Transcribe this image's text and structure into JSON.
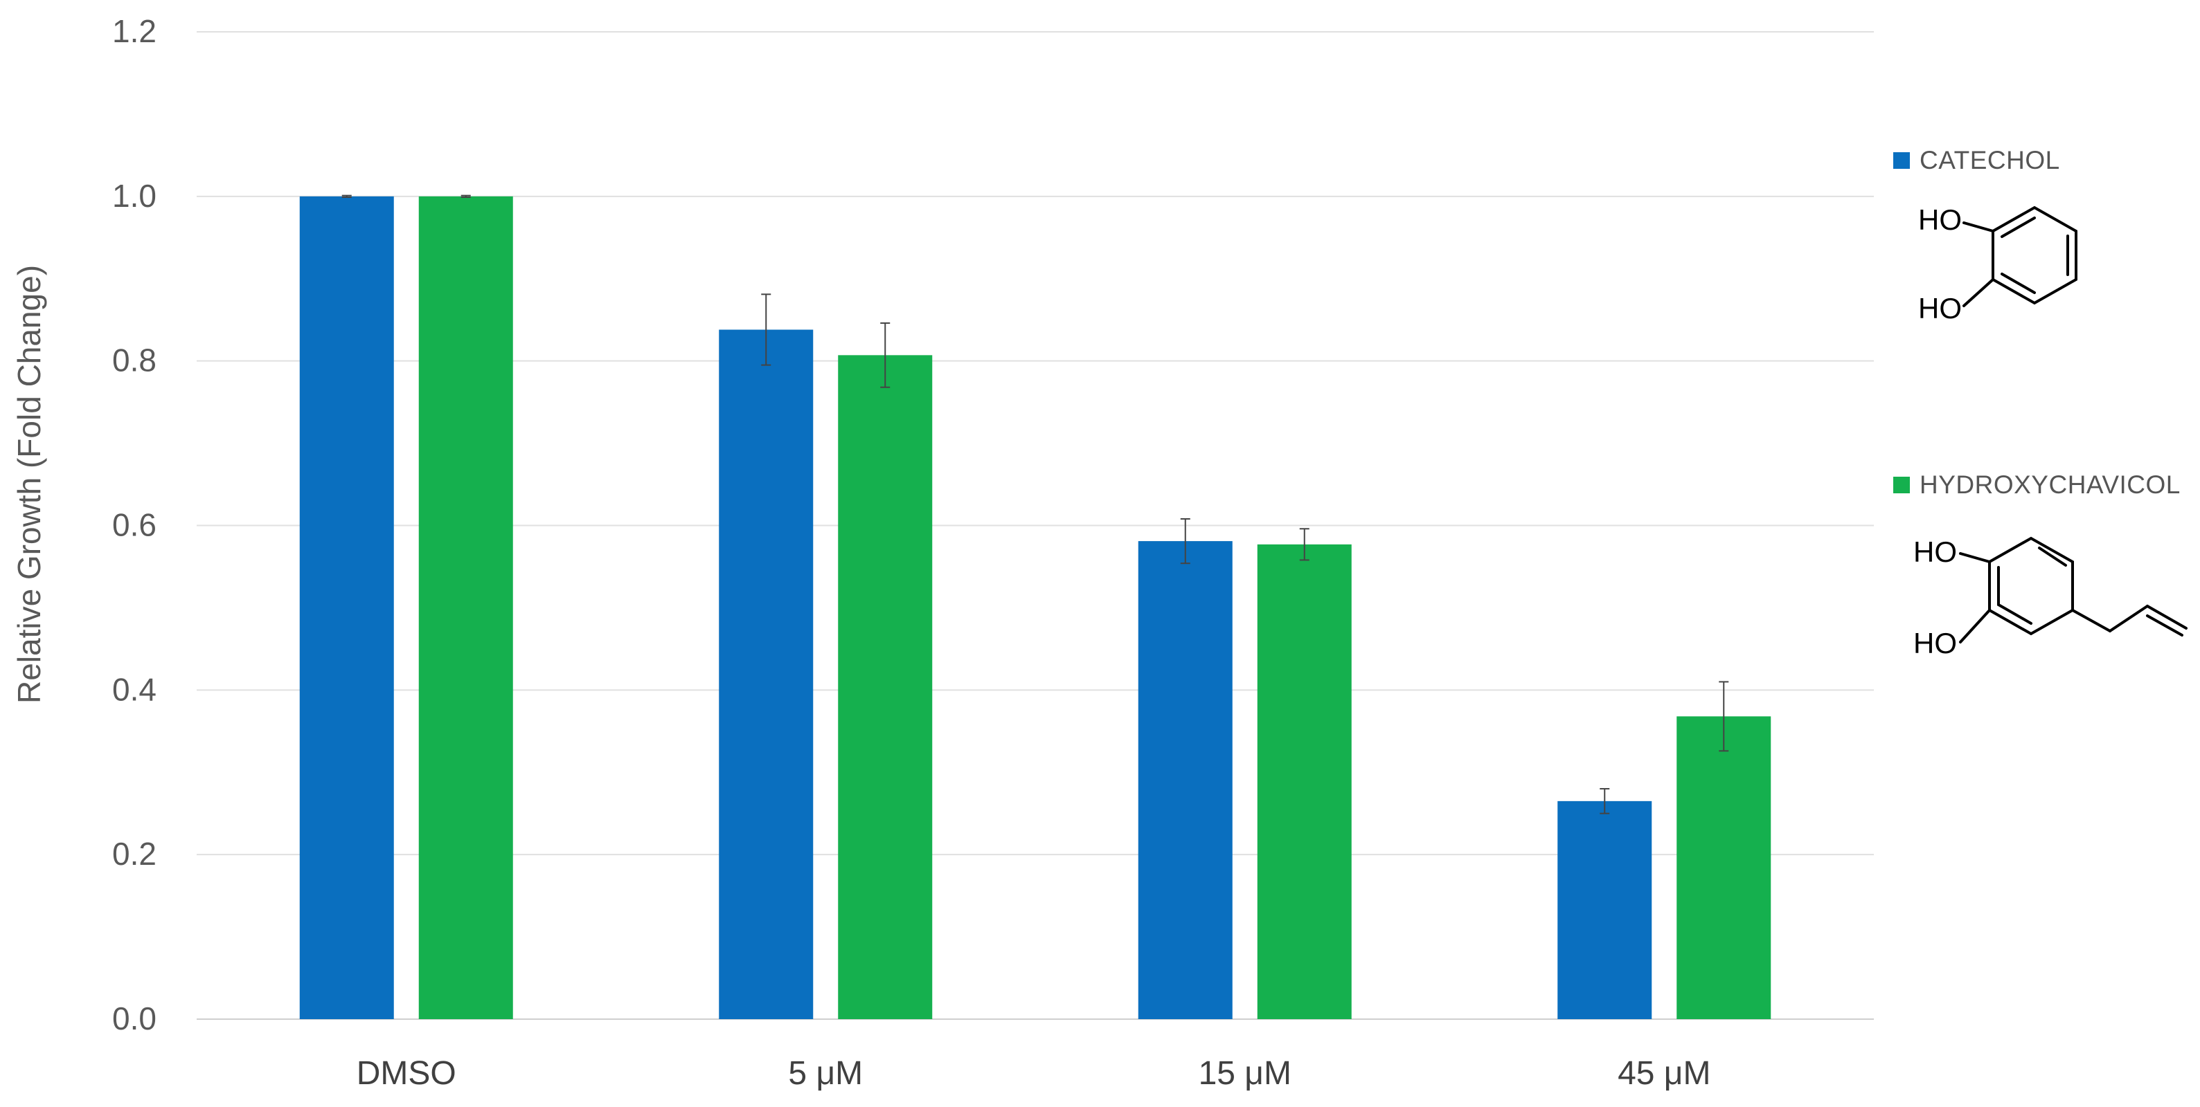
{
  "chart_data": {
    "type": "bar",
    "ylabel": "Relative Growth (Fold Change)",
    "xlabel": "",
    "ylim": [
      0,
      1.2
    ],
    "yticks": [
      "0.0",
      "0.2",
      "0.4",
      "0.6",
      "0.8",
      "1.0",
      "1.2"
    ],
    "grid": true,
    "legend_position": "right",
    "categories": [
      "DMSO",
      "5 μM",
      "15 μM",
      "45 μM"
    ],
    "series": [
      {
        "name": "CATECHOL",
        "color": "#0a6fbf",
        "values": [
          1.0,
          0.838,
          0.581,
          0.265
        ],
        "errors": [
          0.001,
          0.043,
          0.027,
          0.015
        ]
      },
      {
        "name": "HYDROXYCHAVICOL",
        "color": "#15b04e",
        "values": [
          1.0,
          0.807,
          0.577,
          0.368
        ],
        "errors": [
          0.001,
          0.039,
          0.019,
          0.042
        ]
      }
    ]
  },
  "structures": {
    "catechol": {
      "ho_top": "HO",
      "ho_bottom": "HO"
    },
    "hydroxychavicol": {
      "ho_top": "HO",
      "ho_bottom": "HO"
    }
  }
}
